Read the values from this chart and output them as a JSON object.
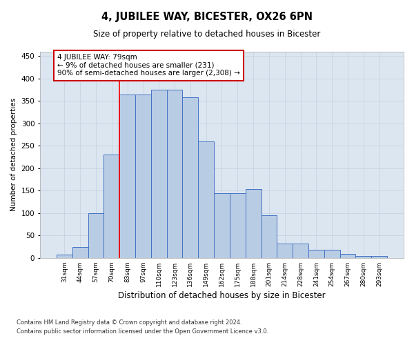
{
  "title": "4, JUBILEE WAY, BICESTER, OX26 6PN",
  "subtitle": "Size of property relative to detached houses in Bicester",
  "xlabel": "Distribution of detached houses by size in Bicester",
  "ylabel": "Number of detached properties",
  "categories": [
    "31sqm",
    "44sqm",
    "57sqm",
    "70sqm",
    "83sqm",
    "97sqm",
    "110sqm",
    "123sqm",
    "136sqm",
    "149sqm",
    "162sqm",
    "175sqm",
    "188sqm",
    "201sqm",
    "214sqm",
    "228sqm",
    "241sqm",
    "254sqm",
    "267sqm",
    "280sqm",
    "293sqm"
  ],
  "values": [
    8,
    25,
    100,
    230,
    365,
    365,
    375,
    375,
    358,
    260,
    145,
    145,
    153,
    95,
    32,
    32,
    18,
    18,
    9,
    4,
    4
  ],
  "bar_color": "#b8cce4",
  "bar_edge_color": "#4472c4",
  "grid_color": "#c5d0e0",
  "background_color": "#dce6f1",
  "ylim": [
    0,
    460
  ],
  "yticks": [
    0,
    50,
    100,
    150,
    200,
    250,
    300,
    350,
    400,
    450
  ],
  "red_line_index": 3.5,
  "annotation_text_line1": "4 JUBILEE WAY: 79sqm",
  "annotation_text_line2": "← 9% of detached houses are smaller (231)",
  "annotation_text_line3": "90% of semi-detached houses are larger (2,308) →",
  "annotation_box_color": "#ffffff",
  "annotation_border_color": "#cc0000",
  "footer_line1": "Contains HM Land Registry data © Crown copyright and database right 2024.",
  "footer_line2": "Contains public sector information licensed under the Open Government Licence v3.0."
}
